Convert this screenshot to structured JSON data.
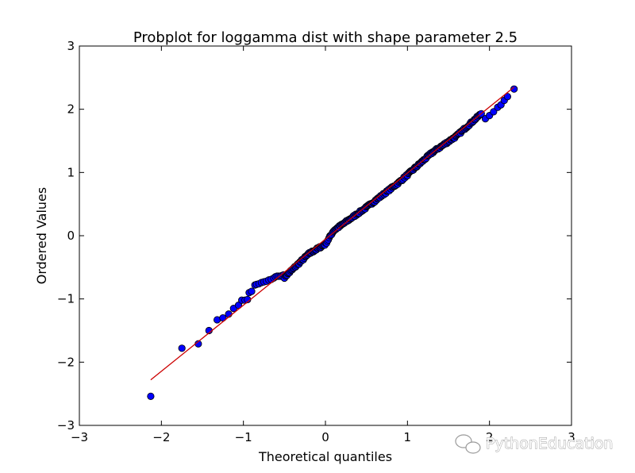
{
  "chart_data": {
    "type": "scatter",
    "title": "Probplot for loggamma dist with shape parameter 2.5",
    "xlabel": "Theoretical quantiles",
    "ylabel": "Ordered Values",
    "xlim": [
      -3,
      3
    ],
    "ylim": [
      -3,
      3
    ],
    "xticks": [
      -3,
      -2,
      -1,
      0,
      1,
      2,
      3
    ],
    "yticks": [
      -3,
      -2,
      -1,
      0,
      1,
      2,
      3
    ],
    "xtick_labels": [
      "−3",
      "−2",
      "−1",
      "0",
      "1",
      "2",
      "3"
    ],
    "ytick_labels": [
      "−3",
      "−2",
      "−1",
      "0",
      "1",
      "2",
      "3"
    ],
    "grid": false,
    "marker_color": "#0000ff",
    "marker_edge_color": "#000000",
    "line_color": "#cc0000",
    "fit_line": {
      "x": [
        -2.13,
        2.3
      ],
      "y": [
        -2.28,
        2.35
      ]
    },
    "tail_points": {
      "x": [
        -2.13,
        -1.75,
        -1.55,
        -1.42,
        -1.32,
        -1.25,
        -1.18,
        -1.12,
        -1.06,
        -1.02,
        -0.98,
        -0.95,
        -0.93,
        -0.9,
        -0.86,
        -0.84,
        -0.81,
        -0.78,
        -0.75,
        -0.72,
        -0.69,
        -0.66,
        -0.63,
        -0.61,
        -0.59,
        -0.57,
        -0.55,
        -0.53,
        -0.51,
        1.95,
        2.0,
        2.05,
        2.1,
        2.14,
        2.18,
        2.22,
        2.3
      ],
      "y": [
        -2.54,
        -1.78,
        -1.71,
        -1.5,
        -1.33,
        -1.3,
        -1.24,
        -1.15,
        -1.1,
        -1.02,
        -1.02,
        -1.01,
        -0.9,
        -0.88,
        -0.78,
        -0.77,
        -0.76,
        -0.74,
        -0.73,
        -0.72,
        -0.7,
        -0.69,
        -0.67,
        -0.65,
        -0.64,
        -0.64,
        -0.64,
        -0.63,
        -0.62,
        1.85,
        1.9,
        1.96,
        2.03,
        2.07,
        2.14,
        2.2,
        2.32
      ]
    },
    "body_points": {
      "x_range": [
        -0.5,
        1.9
      ],
      "count": 230,
      "description_of_deviation": [
        {
          "x": -0.5,
          "dy": -0.08
        },
        {
          "x": -0.2,
          "dy": -0.02
        },
        {
          "x": 0.0,
          "dy": -0.08
        },
        {
          "x": 0.1,
          "dy": 0.03
        },
        {
          "x": 0.5,
          "dy": -0.02
        },
        {
          "x": 0.9,
          "dy": -0.04
        },
        {
          "x": 1.3,
          "dy": 0.01
        },
        {
          "x": 1.6,
          "dy": -0.04
        },
        {
          "x": 1.9,
          "dy": 0.0
        }
      ]
    }
  },
  "watermark": {
    "text": "PythonEducation",
    "icon": "wechat-icon"
  }
}
